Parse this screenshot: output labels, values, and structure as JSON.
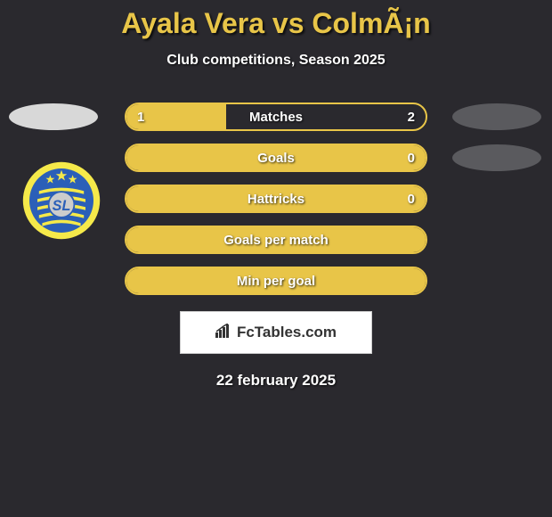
{
  "title": "Ayala Vera vs ColmÃ¡n",
  "subtitle": "Club competitions, Season 2025",
  "date": "22 february 2025",
  "brand": "FcTables.com",
  "colors": {
    "background": "#2a292e",
    "accent": "#e8c548",
    "text": "#ffffff",
    "ellipse_left": "#d8d8d8",
    "ellipse_right": "#5a5a5e"
  },
  "rows": [
    {
      "label": "Matches",
      "left_value": "1",
      "right_value": "2",
      "left_fill_pct": 33.3,
      "right_fill_pct": 0,
      "show_left_ellipse": true,
      "show_right_ellipse": true
    },
    {
      "label": "Goals",
      "left_value": "",
      "right_value": "0",
      "left_fill_pct": 100,
      "right_fill_pct": 0,
      "show_left_ellipse": false,
      "show_right_ellipse": true
    },
    {
      "label": "Hattricks",
      "left_value": "",
      "right_value": "0",
      "left_fill_pct": 100,
      "right_fill_pct": 0,
      "show_left_ellipse": false,
      "show_right_ellipse": false
    },
    {
      "label": "Goals per match",
      "left_value": "",
      "right_value": "",
      "left_fill_pct": 100,
      "right_fill_pct": 0,
      "show_left_ellipse": false,
      "show_right_ellipse": false
    },
    {
      "label": "Min per goal",
      "left_value": "",
      "right_value": "",
      "left_fill_pct": 100,
      "right_fill_pct": 0,
      "show_left_ellipse": false,
      "show_right_ellipse": false
    }
  ],
  "logo": {
    "outer_color": "#f5e94a",
    "inner_color": "#2b5fb8",
    "stripe_color": "#f5e94a",
    "star_color": "#f5e94a"
  }
}
